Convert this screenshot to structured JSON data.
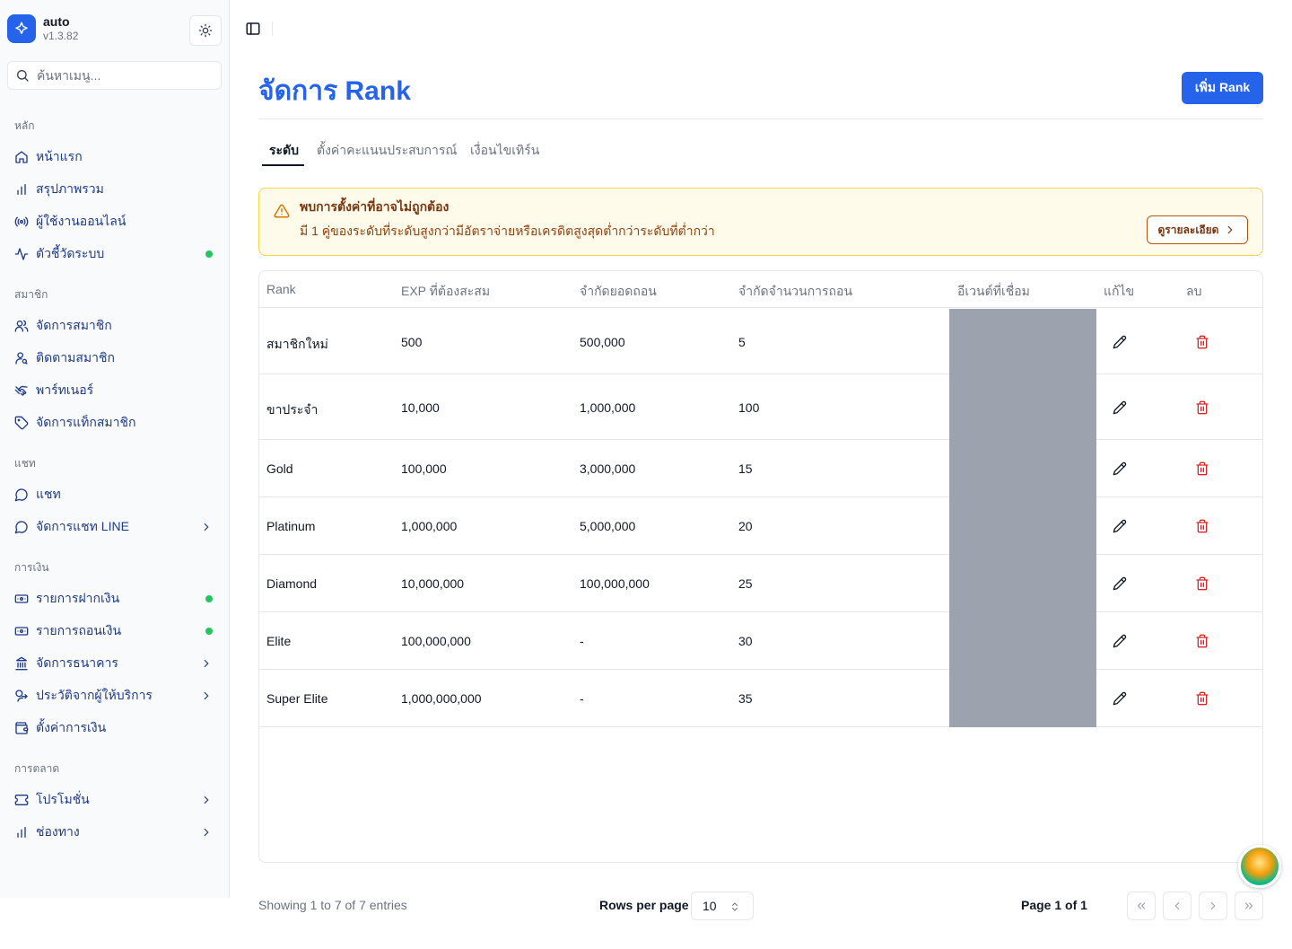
{
  "app": {
    "name": "auto",
    "version": "v1.3.82"
  },
  "search": {
    "placeholder": "ค้นหาเมนู..."
  },
  "sidebar": {
    "groups": [
      {
        "label": "หลัก",
        "items": [
          {
            "label": "หน้าแรก",
            "icon": "home-icon"
          },
          {
            "label": "สรุปภาพรวม",
            "icon": "bar-chart-icon"
          },
          {
            "label": "ผู้ใช้งานออนไลน์",
            "icon": "radio-icon"
          },
          {
            "label": "ตัวชี้วัดระบบ",
            "icon": "activity-icon",
            "status": "online"
          }
        ]
      },
      {
        "label": "สมาชิก",
        "items": [
          {
            "label": "จัดการสมาชิก",
            "icon": "users-icon"
          },
          {
            "label": "ติดตามสมาชิก",
            "icon": "user-search-icon"
          },
          {
            "label": "พาร์ทเนอร์",
            "icon": "handshake-icon"
          },
          {
            "label": "จัดการแท็กสมาชิก",
            "icon": "tag-icon"
          }
        ]
      },
      {
        "label": "แชท",
        "items": [
          {
            "label": "แชท",
            "icon": "message-circle-icon"
          },
          {
            "label": "จัดการแชท LINE",
            "icon": "message-circle-icon",
            "expandable": true
          }
        ]
      },
      {
        "label": "การเงิน",
        "items": [
          {
            "label": "รายการฝากเงิน",
            "icon": "deposit-icon",
            "status": "online"
          },
          {
            "label": "รายการถอนเงิน",
            "icon": "withdraw-icon",
            "status": "online"
          },
          {
            "label": "จัดการธนาคาร",
            "icon": "bank-icon",
            "expandable": true
          },
          {
            "label": "ประวัติจากผู้ให้บริการ",
            "icon": "provider-history-icon",
            "expandable": true
          },
          {
            "label": "ตั้งค่าการเงิน",
            "icon": "wallet-icon"
          }
        ]
      },
      {
        "label": "การตลาด",
        "items": [
          {
            "label": "โปรโมชั่น",
            "icon": "ticket-icon",
            "expandable": true
          },
          {
            "label": "ช่องทาง",
            "icon": "bar-chart-icon",
            "expandable": true
          }
        ]
      }
    ],
    "status_color": "#22c55e"
  },
  "page": {
    "title": "จัดการ Rank",
    "add_button": "เพิ่ม Rank",
    "tabs": [
      {
        "label": "ระดับ",
        "active": true
      },
      {
        "label": "ตั้งค่าคะแนนประสบการณ์",
        "active": false
      },
      {
        "label": "เงื่อนไขเทิร์น",
        "active": false
      }
    ],
    "accent_color": "#2563eb"
  },
  "alert": {
    "title": "พบการตั้งค่าที่อาจไม่ถูกต้อง",
    "description": "มี 1 คู่ของระดับที่ระดับสูงกว่ามีอัตราจ่ายหรือเครดิตสูงสุดต่ำกว่าระดับที่ต่ำกว่า",
    "button": "ดูรายละเอียด"
  },
  "table": {
    "headers": [
      "Rank",
      "EXP ที่ต้องสะสม",
      "จำกัดยอดถอน",
      "จำกัดจำนวนการถอน",
      "อีเวนต์ที่เชื่อม",
      "แก้ไข",
      "ลบ"
    ],
    "rows": [
      {
        "rank": "สมาชิกใหม่",
        "exp": "500",
        "withdraw_limit": "500,000",
        "withdraw_count": "5"
      },
      {
        "rank": "ขาประจำ",
        "exp": "10,000",
        "withdraw_limit": "1,000,000",
        "withdraw_count": "100"
      },
      {
        "rank": "Gold",
        "exp": "100,000",
        "withdraw_limit": "3,000,000",
        "withdraw_count": "15"
      },
      {
        "rank": "Platinum",
        "exp": "1,000,000",
        "withdraw_limit": "5,000,000",
        "withdraw_count": "20"
      },
      {
        "rank": "Diamond",
        "exp": "10,000,000",
        "withdraw_limit": "100,000,000",
        "withdraw_count": "25"
      },
      {
        "rank": "Elite",
        "exp": "100,000,000",
        "withdraw_limit": "-",
        "withdraw_count": "30"
      },
      {
        "rank": "Super Elite",
        "exp": "1,000,000,000",
        "withdraw_limit": "-",
        "withdraw_count": "35"
      }
    ]
  },
  "footer": {
    "showing": "Showing 1 to 7 of 7 entries",
    "rows_per_page_label": "Rows per page",
    "rows_per_page_value": "10",
    "page_info": "Page 1 of 1"
  }
}
